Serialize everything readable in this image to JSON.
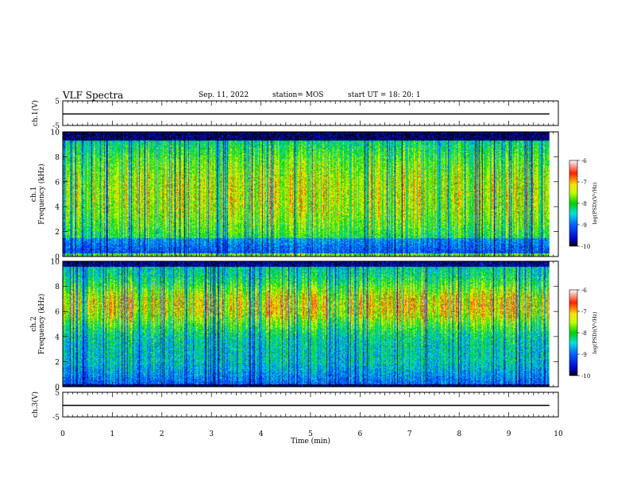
{
  "header": {
    "title": "VLF Spectra",
    "date": "Sep. 11, 2022",
    "station": "station= MOS",
    "start_ut": "start  UT =  18: 20: 1"
  },
  "chart_data": [
    {
      "type": "line",
      "panel": "ch1-waveform",
      "ylabel": "ch.1(V)",
      "ylim": [
        -5,
        5
      ],
      "yticks": [
        "5",
        "-5"
      ],
      "series": [
        {
          "x": [
            0,
            9.82
          ],
          "y": [
            0,
            0
          ]
        }
      ]
    },
    {
      "type": "heatmap",
      "panel": "ch1-spectrogram",
      "ylabel": "ch.1\nFrequency (kHz)",
      "xlim": [
        0,
        10
      ],
      "ylim": [
        0,
        10
      ],
      "data_x_end": 9.82,
      "yticks": [
        "0",
        "2",
        "4",
        "6",
        "8",
        "10"
      ],
      "colorbar": {
        "label": "log(PSD)(V²/Hz)",
        "range": [
          -10,
          -6
        ],
        "ticks": [
          "-6",
          "-7",
          "-8",
          "-9",
          "-10"
        ]
      }
    },
    {
      "type": "heatmap",
      "panel": "ch2-spectrogram",
      "ylabel": "ch.2\nFrequency (kHz)",
      "xlim": [
        0,
        10
      ],
      "ylim": [
        0,
        10
      ],
      "data_x_end": 9.82,
      "yticks": [
        "0",
        "2",
        "4",
        "6",
        "8",
        "10"
      ],
      "colorbar": {
        "label": "log(PSD)(V²/Hz)",
        "range": [
          -10,
          -6
        ],
        "ticks": [
          "-6",
          "-7",
          "-8",
          "-9",
          "-10"
        ]
      }
    },
    {
      "type": "line",
      "panel": "ch3-waveform",
      "ylabel": "ch.3(V)",
      "ylim": [
        -5,
        5
      ],
      "yticks": [
        "5",
        "-5"
      ],
      "series": [
        {
          "x": [
            0,
            9.82
          ],
          "y": [
            0,
            0
          ]
        }
      ],
      "xlabel": "Time  (min)",
      "xticks": [
        "0",
        "1",
        "2",
        "3",
        "4",
        "5",
        "6",
        "7",
        "8",
        "9",
        "10"
      ]
    }
  ]
}
